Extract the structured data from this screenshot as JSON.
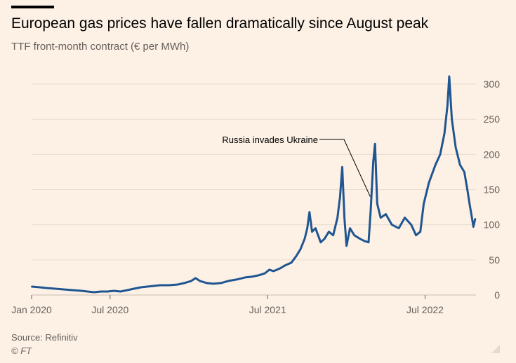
{
  "title": "European gas prices have fallen dramatically since August peak",
  "subtitle": "TTF front-month contract (€ per MWh)",
  "source": "Source: Refinitiv",
  "credit": "© FT",
  "colors": {
    "line": "#1f5591",
    "grid": "#e9ddd2",
    "text": "#66605c"
  },
  "chart_data": {
    "type": "line",
    "title": "European gas prices have fallen dramatically since August peak",
    "ylabel": "TTF front-month contract (€ per MWh)",
    "ylim": [
      0,
      310
    ],
    "yticks": [
      0,
      50,
      100,
      150,
      200,
      250,
      300
    ],
    "xticks": [
      {
        "date": "2020-01-01",
        "label": "Jan 2020"
      },
      {
        "date": "2020-07-01",
        "label": "Jul 2020"
      },
      {
        "date": "2021-07-01",
        "label": "Jul 2021"
      },
      {
        "date": "2022-07-01",
        "label": "Jul 2022"
      }
    ],
    "grid": true,
    "annotation": {
      "text": "Russia invades Ukraine",
      "date": "2022-02-24",
      "value": 120
    },
    "series": [
      {
        "name": "",
        "points": [
          [
            "2020-01-02",
            12
          ],
          [
            "2020-01-20",
            11
          ],
          [
            "2020-02-05",
            10
          ],
          [
            "2020-02-25",
            9
          ],
          [
            "2020-03-15",
            8
          ],
          [
            "2020-04-05",
            7
          ],
          [
            "2020-04-25",
            6
          ],
          [
            "2020-05-10",
            5
          ],
          [
            "2020-05-25",
            4
          ],
          [
            "2020-06-10",
            5
          ],
          [
            "2020-06-25",
            5
          ],
          [
            "2020-07-10",
            6
          ],
          [
            "2020-07-25",
            5
          ],
          [
            "2020-08-10",
            7
          ],
          [
            "2020-08-25",
            9
          ],
          [
            "2020-09-10",
            11
          ],
          [
            "2020-09-25",
            12
          ],
          [
            "2020-10-10",
            13
          ],
          [
            "2020-10-25",
            14
          ],
          [
            "2020-11-15",
            14
          ],
          [
            "2020-12-05",
            15
          ],
          [
            "2020-12-20",
            17
          ],
          [
            "2021-01-05",
            20
          ],
          [
            "2021-01-15",
            24
          ],
          [
            "2021-01-25",
            20
          ],
          [
            "2021-02-10",
            17
          ],
          [
            "2021-02-25",
            16
          ],
          [
            "2021-03-15",
            17
          ],
          [
            "2021-04-01",
            20
          ],
          [
            "2021-04-20",
            22
          ],
          [
            "2021-05-10",
            25
          ],
          [
            "2021-05-25",
            26
          ],
          [
            "2021-06-10",
            28
          ],
          [
            "2021-06-25",
            31
          ],
          [
            "2021-07-05",
            36
          ],
          [
            "2021-07-15",
            34
          ],
          [
            "2021-07-30",
            38
          ],
          [
            "2021-08-10",
            42
          ],
          [
            "2021-08-25",
            46
          ],
          [
            "2021-09-05",
            55
          ],
          [
            "2021-09-15",
            65
          ],
          [
            "2021-09-25",
            80
          ],
          [
            "2021-10-01",
            95
          ],
          [
            "2021-10-06",
            118
          ],
          [
            "2021-10-12",
            90
          ],
          [
            "2021-10-20",
            95
          ],
          [
            "2021-11-01",
            75
          ],
          [
            "2021-11-10",
            80
          ],
          [
            "2021-11-20",
            90
          ],
          [
            "2021-11-30",
            85
          ],
          [
            "2021-12-10",
            110
          ],
          [
            "2021-12-16",
            140
          ],
          [
            "2021-12-21",
            182
          ],
          [
            "2021-12-26",
            110
          ],
          [
            "2021-12-31",
            70
          ],
          [
            "2022-01-08",
            95
          ],
          [
            "2022-01-18",
            85
          ],
          [
            "2022-01-31",
            80
          ],
          [
            "2022-02-10",
            77
          ],
          [
            "2022-02-20",
            75
          ],
          [
            "2022-02-25",
            120
          ],
          [
            "2022-03-03",
            190
          ],
          [
            "2022-03-07",
            215
          ],
          [
            "2022-03-12",
            130
          ],
          [
            "2022-03-20",
            110
          ],
          [
            "2022-04-01",
            115
          ],
          [
            "2022-04-15",
            100
          ],
          [
            "2022-05-01",
            95
          ],
          [
            "2022-05-15",
            110
          ],
          [
            "2022-05-30",
            100
          ],
          [
            "2022-06-10",
            85
          ],
          [
            "2022-06-20",
            90
          ],
          [
            "2022-06-28",
            130
          ],
          [
            "2022-07-10",
            160
          ],
          [
            "2022-07-25",
            185
          ],
          [
            "2022-08-05",
            200
          ],
          [
            "2022-08-15",
            230
          ],
          [
            "2022-08-22",
            270
          ],
          [
            "2022-08-26",
            311
          ],
          [
            "2022-09-01",
            250
          ],
          [
            "2022-09-10",
            210
          ],
          [
            "2022-09-20",
            185
          ],
          [
            "2022-09-30",
            175
          ],
          [
            "2022-10-07",
            150
          ],
          [
            "2022-10-12",
            130
          ],
          [
            "2022-10-17",
            112
          ],
          [
            "2022-10-21",
            97
          ],
          [
            "2022-10-25",
            108
          ]
        ]
      }
    ]
  }
}
